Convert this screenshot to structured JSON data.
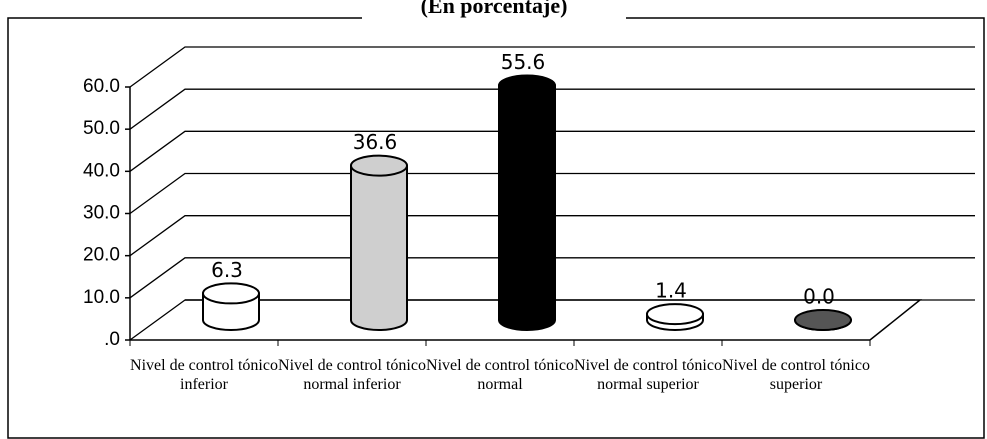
{
  "chart_data": {
    "type": "bar3d",
    "title": "(En porcentaje)",
    "categories": [
      "Nivel de control tónico inferior",
      "Nivel de control tónico normal inferior",
      "Nivel de control tónico normal",
      "Nivel de control tónico normal superior",
      "Nivel de control tónico superior"
    ],
    "values": [
      6.3,
      36.6,
      55.6,
      1.4,
      0.0
    ],
    "value_labels": [
      "6.3",
      "36.6",
      "55.6",
      "1.4",
      "0.0"
    ],
    "colors": [
      "#ffffff",
      "#cfcfcf",
      "#000000",
      "#ffffff",
      "#555555"
    ],
    "ylim": [
      0,
      60
    ],
    "yticks": [
      {
        "value": 0,
        "label": ".0"
      },
      {
        "value": 10,
        "label": "10.0"
      },
      {
        "value": 20,
        "label": "20.0"
      },
      {
        "value": 30,
        "label": "30.0"
      },
      {
        "value": 40,
        "label": "40.0"
      },
      {
        "value": 50,
        "label": "50.0"
      },
      {
        "value": 60,
        "label": "60.0"
      }
    ],
    "grid": true
  }
}
